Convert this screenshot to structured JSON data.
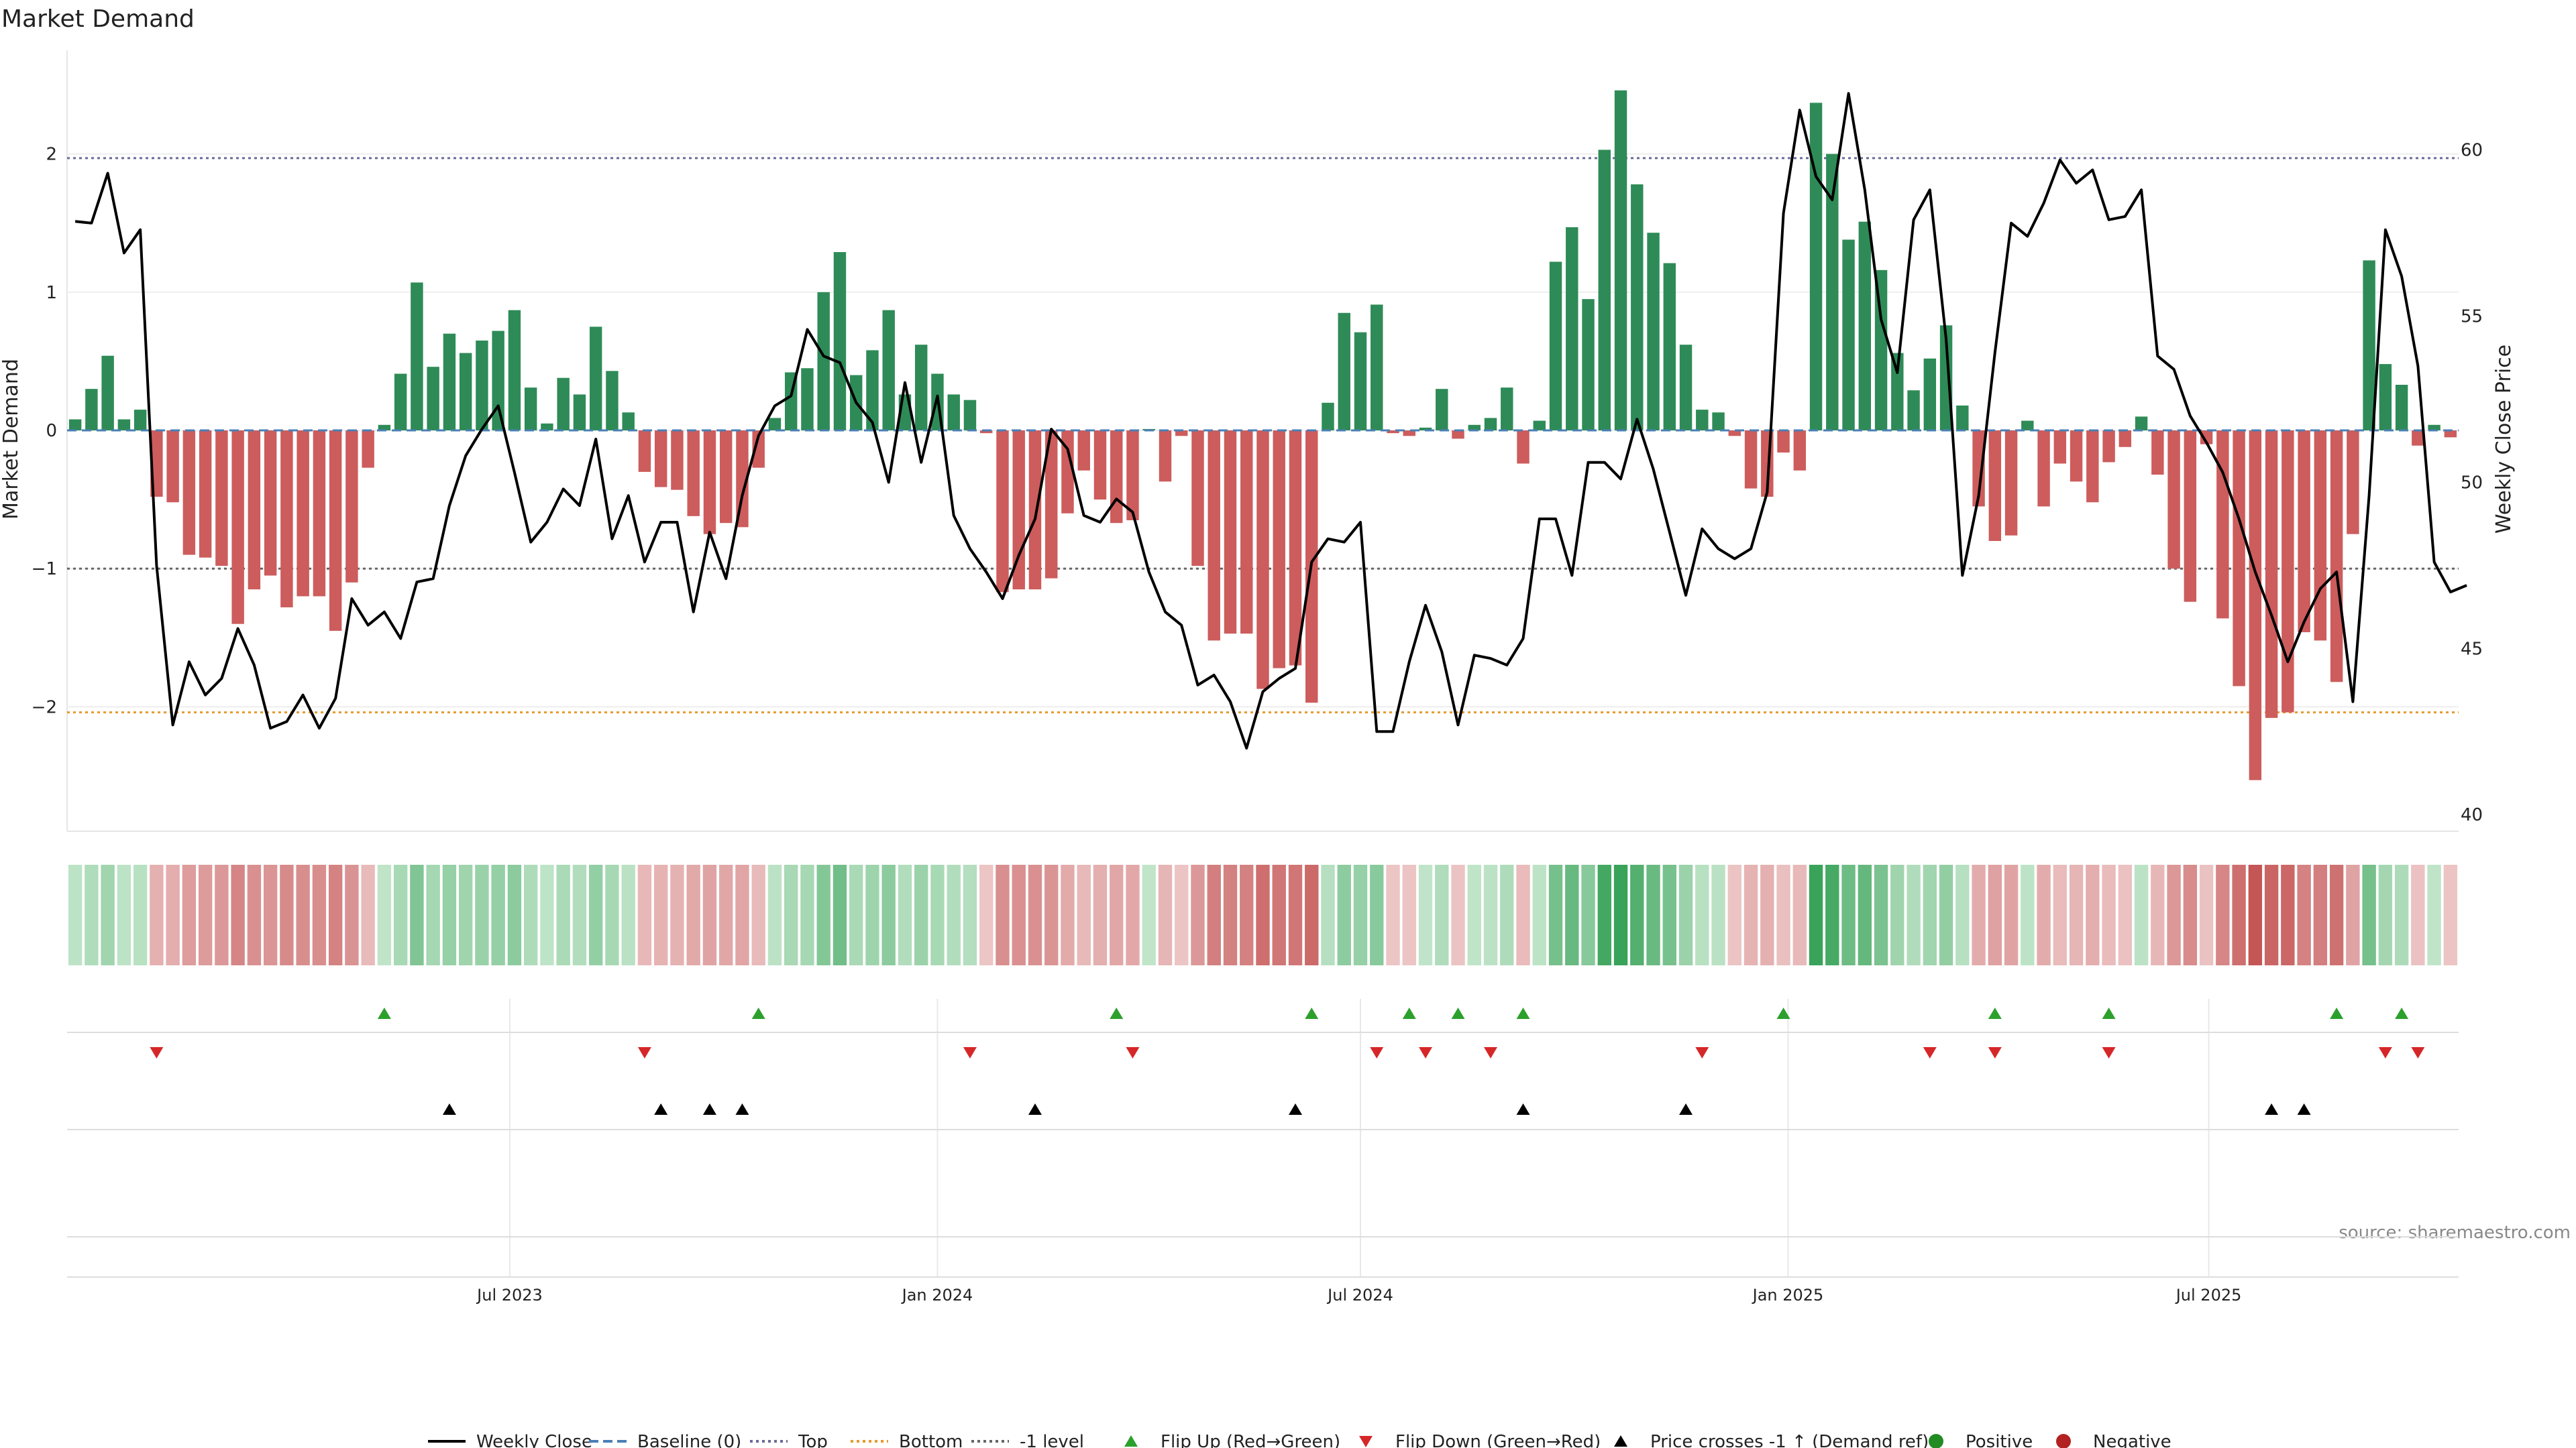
{
  "chart_data": {
    "type": "bar",
    "title": "Market Demand",
    "ylabel": "Market Demand",
    "y2label": "Weekly Close Price",
    "source": "source: sharemaestro.com",
    "ylim": [
      -2.9,
      2.75
    ],
    "y2lim": [
      39.5,
      63
    ],
    "yticks": [
      -2,
      -1,
      0,
      1,
      2
    ],
    "y2ticks": [
      40,
      45,
      50,
      55,
      60
    ],
    "xstart": "2022-12-26",
    "xticks": [
      {
        "date": "2023-07-01",
        "label": "Jul 2023"
      },
      {
        "date": "2024-01-01",
        "label": "Jan 2024"
      },
      {
        "date": "2024-07-01",
        "label": "Jul 2024"
      },
      {
        "date": "2025-01-01",
        "label": "Jan 2025"
      },
      {
        "date": "2025-07-01",
        "label": "Jul 2025"
      }
    ],
    "reference_lines": {
      "top": 1.97,
      "bottom": -2.04,
      "baseline": 0,
      "minus_one": -1
    },
    "colors": {
      "positive": "#2e8b57",
      "negative": "#cd5c5c",
      "price": "#000000",
      "top_line": "#6a6a9a",
      "bottom_line": "#e69a2e",
      "baseline_line": "#4a7fb5",
      "flip_up": "#2ca02c",
      "flip_down": "#d62728",
      "cross": "#000000",
      "legend_positive": "#228b22",
      "legend_negative": "#b22222"
    },
    "demand": [
      0.08,
      0.3,
      0.54,
      0.08,
      0.15,
      -0.48,
      -0.52,
      -0.9,
      -0.92,
      -0.98,
      -1.4,
      -1.15,
      -1.05,
      -1.28,
      -1.2,
      -1.2,
      -1.45,
      -1.1,
      -0.27,
      0.04,
      0.41,
      1.07,
      0.46,
      0.7,
      0.56,
      0.65,
      0.72,
      0.87,
      0.31,
      0.05,
      0.38,
      0.26,
      0.75,
      0.43,
      0.13,
      -0.3,
      -0.41,
      -0.43,
      -0.62,
      -0.75,
      -0.67,
      -0.7,
      -0.27,
      0.09,
      0.42,
      0.45,
      1.0,
      1.29,
      0.4,
      0.58,
      0.87,
      0.26,
      0.62,
      0.41,
      0.26,
      0.22,
      -0.02,
      -1.17,
      -1.15,
      -1.15,
      -1.07,
      -0.6,
      -0.29,
      -0.5,
      -0.67,
      -0.65,
      0.01,
      -0.37,
      -0.04,
      -0.98,
      -1.52,
      -1.47,
      -1.47,
      -1.87,
      -1.72,
      -1.7,
      -1.97,
      0.2,
      0.85,
      0.71,
      0.91,
      -0.02,
      -0.04,
      0.02,
      0.3,
      -0.06,
      0.04,
      0.09,
      0.31,
      -0.24,
      0.07,
      1.22,
      1.47,
      0.95,
      2.03,
      2.46,
      1.78,
      1.43,
      1.21,
      0.62,
      0.15,
      0.13,
      -0.04,
      -0.42,
      -0.48,
      -0.16,
      -0.29,
      2.37,
      2.0,
      1.38,
      1.51,
      1.16,
      0.56,
      0.29,
      0.52,
      0.76,
      0.18,
      -0.55,
      -0.8,
      -0.76,
      0.07,
      -0.55,
      -0.24,
      -0.37,
      -0.52,
      -0.23,
      -0.12,
      0.1,
      -0.32,
      -1.0,
      -1.24,
      -0.1,
      -1.36,
      -1.85,
      -2.53,
      -2.08,
      -2.04,
      -1.46,
      -1.52,
      -1.82,
      -0.75,
      1.23,
      0.48,
      0.33,
      -0.11,
      0.04,
      -0.05
    ],
    "price": [
      57.85,
      57.8,
      59.3,
      56.9,
      57.6,
      47.5,
      42.7,
      44.6,
      43.6,
      44.1,
      45.6,
      44.5,
      42.6,
      42.8,
      43.6,
      42.6,
      43.5,
      46.5,
      45.7,
      46.1,
      45.3,
      47.0,
      47.1,
      49.3,
      50.8,
      51.6,
      52.3,
      50.3,
      48.2,
      48.8,
      49.8,
      49.3,
      51.3,
      48.3,
      49.6,
      47.6,
      48.8,
      48.8,
      46.1,
      48.5,
      47.1,
      49.6,
      51.4,
      52.3,
      52.6,
      54.6,
      53.8,
      53.6,
      52.4,
      51.8,
      50.0,
      53.0,
      50.6,
      52.6,
      49.0,
      48.0,
      47.3,
      46.5,
      47.8,
      48.9,
      51.6,
      51.0,
      49.0,
      48.8,
      49.5,
      49.1,
      47.3,
      46.1,
      45.7,
      43.9,
      44.2,
      43.4,
      42.0,
      43.7,
      44.1,
      44.4,
      47.6,
      48.3,
      48.2,
      48.8,
      42.5,
      42.5,
      44.6,
      46.3,
      44.9,
      42.7,
      44.8,
      44.7,
      44.5,
      45.3,
      48.9,
      48.9,
      47.2,
      50.6,
      50.6,
      50.1,
      51.9,
      50.4,
      48.5,
      46.6,
      48.6,
      48.0,
      47.7,
      48.0,
      49.7,
      58.1,
      61.2,
      59.2,
      58.5,
      61.7,
      58.8,
      54.9,
      53.3,
      57.9,
      58.8,
      54.3,
      47.2,
      49.6,
      53.9,
      57.8,
      57.4,
      58.4,
      59.7,
      59.0,
      59.4,
      57.9,
      58.0,
      58.8,
      53.8,
      53.4,
      52.0,
      51.2,
      50.3,
      48.9,
      47.3,
      46.0,
      44.6,
      45.8,
      46.8,
      47.3,
      43.4,
      49.6,
      57.6,
      56.2,
      53.5,
      47.6,
      46.7,
      46.9
    ],
    "flip_up_weeks": [
      19,
      42,
      64,
      76,
      82,
      85,
      89,
      105,
      118,
      125,
      139,
      143
    ],
    "flip_down_weeks": [
      5,
      35,
      55,
      65,
      80,
      83,
      87,
      100,
      114,
      118,
      125,
      142,
      144
    ],
    "cross_weeks": [
      23,
      36,
      39,
      41,
      59,
      75,
      89,
      99,
      135,
      137
    ],
    "legend": [
      {
        "label": "Weekly Close",
        "marker": "solid-line",
        "color": "#000000"
      },
      {
        "label": "Baseline (0)",
        "marker": "dashed-line",
        "color": "#4a7fb5"
      },
      {
        "label": "Top",
        "marker": "dotted-line",
        "color": "#6a6a9a"
      },
      {
        "label": "Bottom",
        "marker": "dotted-line",
        "color": "#e69a2e"
      },
      {
        "label": "-1 level",
        "marker": "dotted-line",
        "color": "#666666"
      },
      {
        "label": "Flip Up (Red→Green)",
        "marker": "triangle-up",
        "color": "#2ca02c"
      },
      {
        "label": "Flip Down (Green→Red)",
        "marker": "triangle-down",
        "color": "#d62728"
      },
      {
        "label": "Price crosses -1 ↑ (Demand ref)",
        "marker": "triangle-up",
        "color": "#000000"
      },
      {
        "label": "Positive",
        "marker": "circle",
        "color": "#228b22"
      },
      {
        "label": "Negative",
        "marker": "circle",
        "color": "#b22222"
      }
    ]
  }
}
